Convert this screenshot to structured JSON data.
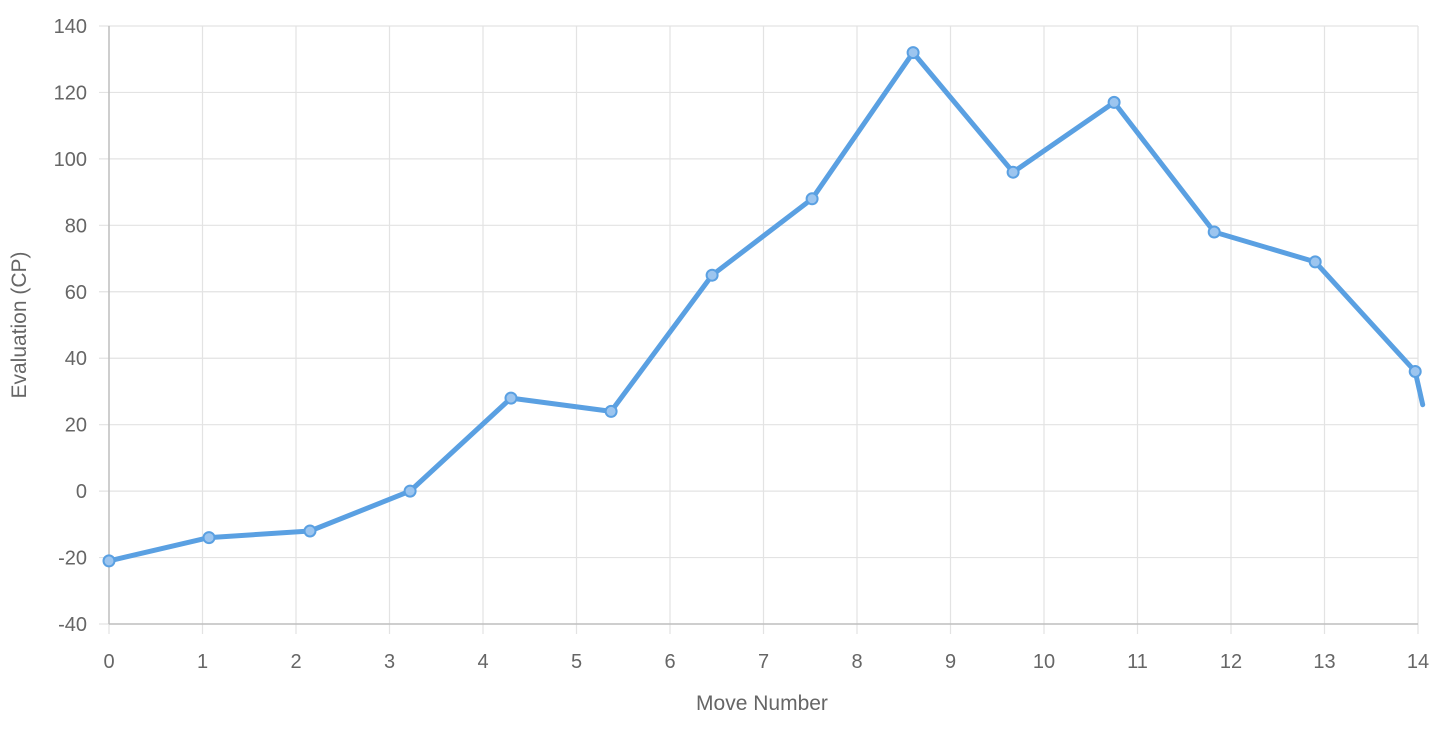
{
  "chart_data": {
    "type": "line",
    "title": "",
    "xlabel": "Move Number",
    "ylabel": "Evaluation (CP)",
    "xlim": [
      0,
      14
    ],
    "ylim": [
      -40,
      140
    ],
    "x_ticks": [
      0,
      1,
      2,
      3,
      4,
      5,
      6,
      7,
      8,
      9,
      10,
      11,
      12,
      13,
      14
    ],
    "y_ticks": [
      -40,
      -20,
      0,
      20,
      40,
      60,
      80,
      100,
      120,
      140
    ],
    "grid": true,
    "legend": "none",
    "series": [
      {
        "name": "Evaluation",
        "color": "#5aa0e2",
        "x": [
          0,
          1.07,
          2.15,
          3.22,
          4.3,
          5.37,
          6.45,
          7.52,
          8.6,
          9.67,
          10.75,
          11.82,
          12.9,
          13.97,
          14.05
        ],
        "values": [
          -21,
          -14,
          -12,
          0,
          28,
          24,
          65,
          88,
          132,
          96,
          117,
          78,
          69,
          36,
          26
        ]
      }
    ]
  },
  "colors": {
    "grid": "#e3e3e3",
    "axis": "#bfbfbf",
    "line": "#5aa0e2",
    "point_fill": "#9cc5ef"
  }
}
